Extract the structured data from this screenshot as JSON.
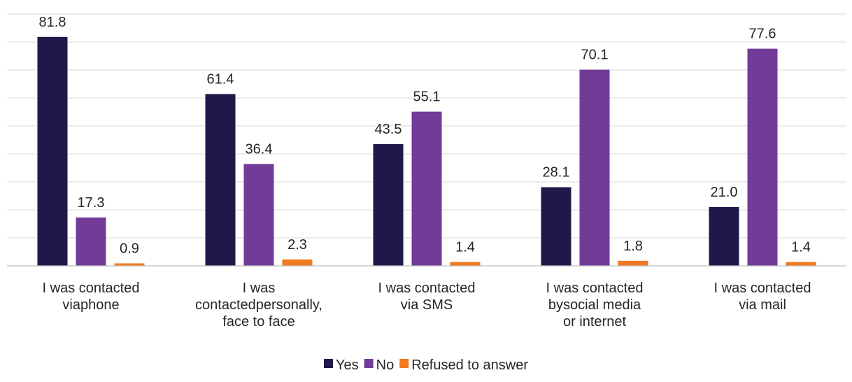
{
  "chart_data": {
    "type": "bar",
    "categories": [
      [
        "I was contacted",
        "viaphone"
      ],
      [
        "I was",
        "contactedpersonally,",
        "face to face"
      ],
      [
        "I was contacted",
        "via SMS"
      ],
      [
        "I was contacted",
        "bysocial media",
        "or internet"
      ],
      [
        "I was contacted",
        "via mail"
      ]
    ],
    "series": [
      {
        "name": "Yes",
        "color": "#1f1849",
        "values": [
          81.8,
          61.4,
          43.5,
          28.1,
          21.0
        ],
        "labels": [
          "81.8",
          "61.4",
          "43.5",
          "28.1",
          "21.0"
        ]
      },
      {
        "name": "No",
        "color": "#723b98",
        "values": [
          17.3,
          36.4,
          55.1,
          70.1,
          77.6
        ],
        "labels": [
          "17.3",
          "36.4",
          "55.1",
          "70.1",
          "77.6"
        ]
      },
      {
        "name": "Refused to answer",
        "color": "#f07a22",
        "values": [
          0.9,
          2.3,
          1.4,
          1.8,
          1.4
        ],
        "labels": [
          "0.9",
          "2.3",
          "1.4",
          "1.8",
          "1.4"
        ]
      }
    ],
    "ylim": [
      0,
      90
    ],
    "y_gridline_step": 10,
    "grid": true,
    "show_y_axis_labels": false,
    "legend_position": "bottom-center"
  }
}
